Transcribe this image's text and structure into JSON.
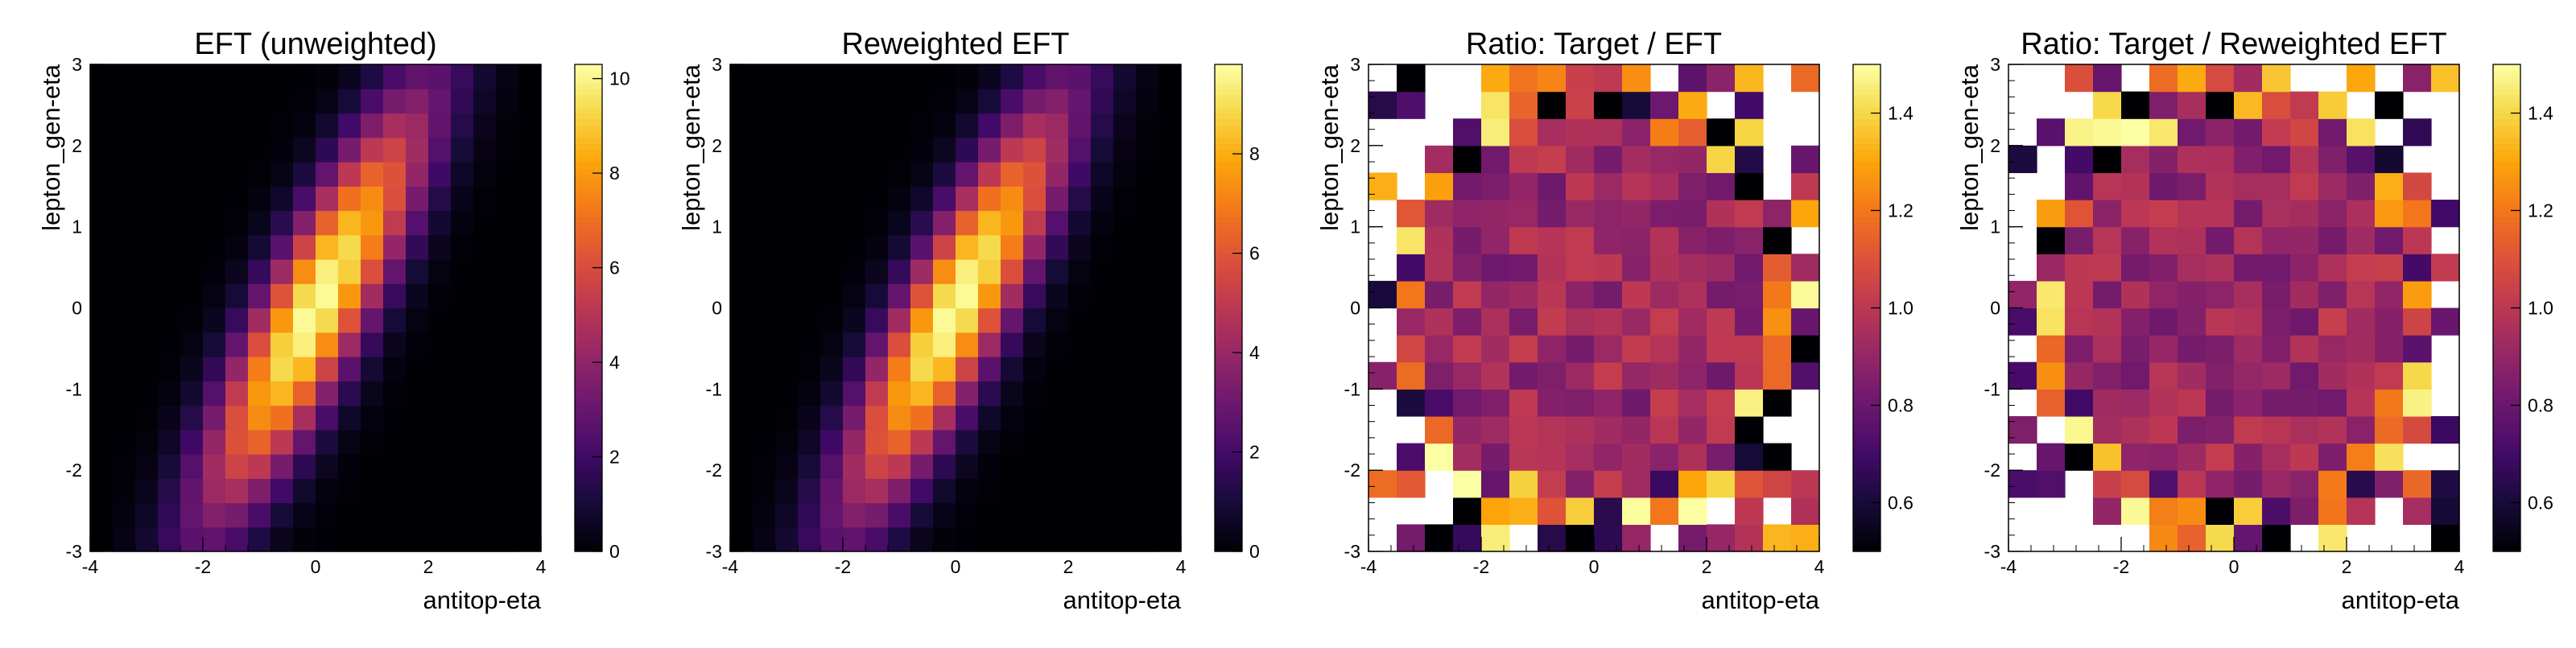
{
  "colormap": "inferno",
  "chart_data": [
    {
      "type": "heatmap",
      "title": "EFT (unweighted)",
      "xlabel": "antitop-eta",
      "ylabel": "lepton_gen-eta",
      "xlim": [
        -4,
        4
      ],
      "ylim": [
        -3,
        3
      ],
      "x_ticks": [
        "-4",
        "-2",
        "0",
        "2",
        "4"
      ],
      "y_ticks": [
        "-3",
        "-2",
        "-1",
        "0",
        "1",
        "2",
        "3"
      ],
      "colorbar": {
        "min": 0,
        "max": 10.3,
        "ticks": [
          {
            "v": 0,
            "label": "0"
          },
          {
            "v": 2,
            "label": "2"
          },
          {
            "v": 4,
            "label": "4"
          },
          {
            "v": 6,
            "label": "6"
          },
          {
            "v": 8,
            "label": "8"
          },
          {
            "v": 10,
            "label": "10"
          }
        ]
      },
      "bins": {
        "nx": 18,
        "ny": 20,
        "x_range": [
          -3.6,
          3.6
        ],
        "y_range": [
          -3,
          3
        ]
      },
      "pattern": "correlated",
      "peak": 10.3
    },
    {
      "type": "heatmap",
      "title": "Reweighted EFT",
      "xlabel": "antitop-eta",
      "ylabel": "lepton_gen-eta",
      "xlim": [
        -4,
        4
      ],
      "ylim": [
        -3,
        3
      ],
      "x_ticks": [
        "-4",
        "-2",
        "0",
        "2",
        "4"
      ],
      "y_ticks": [
        "-3",
        "-2",
        "-1",
        "0",
        "1",
        "2",
        "3"
      ],
      "colorbar": {
        "min": 0,
        "max": 9.8,
        "ticks": [
          {
            "v": 0,
            "label": "0"
          },
          {
            "v": 2,
            "label": "2"
          },
          {
            "v": 4,
            "label": "4"
          },
          {
            "v": 6,
            "label": "6"
          },
          {
            "v": 8,
            "label": "8"
          }
        ]
      },
      "bins": {
        "nx": 18,
        "ny": 20,
        "x_range": [
          -3.6,
          3.6
        ],
        "y_range": [
          -3,
          3
        ]
      },
      "pattern": "correlated",
      "peak": 9.8
    },
    {
      "type": "heatmap",
      "title": "Ratio: Target / EFT",
      "xlabel": "antitop-eta",
      "ylabel": "lepton_gen-eta",
      "xlim": [
        -4,
        4
      ],
      "ylim": [
        -3,
        3
      ],
      "x_ticks": [
        "-4",
        "-2",
        "0",
        "2",
        "4"
      ],
      "y_ticks": [
        "-3",
        "-2",
        "-1",
        "0",
        "1",
        "2",
        "3"
      ],
      "colorbar": {
        "min": 0.5,
        "max": 1.5,
        "ticks": [
          {
            "v": 0.6,
            "label": "0.6"
          },
          {
            "v": 0.8,
            "label": "0.8"
          },
          {
            "v": 1.0,
            "label": "1.0"
          },
          {
            "v": 1.2,
            "label": "1.2"
          },
          {
            "v": 1.4,
            "label": "1.4"
          }
        ]
      },
      "bins": {
        "nx": 16,
        "ny": 18,
        "x_range": [
          -4,
          4
        ],
        "y_range": [
          -3,
          3
        ]
      },
      "pattern": "ratio",
      "seed": 17
    },
    {
      "type": "heatmap",
      "title": "Ratio: Target / Reweighted EFT",
      "xlabel": "antitop-eta",
      "ylabel": "lepton_gen-eta",
      "xlim": [
        -4,
        4
      ],
      "ylim": [
        -3,
        3
      ],
      "x_ticks": [
        "-4",
        "-2",
        "0",
        "2",
        "4"
      ],
      "y_ticks": [
        "-3",
        "-2",
        "-1",
        "0",
        "1",
        "2",
        "3"
      ],
      "colorbar": {
        "min": 0.5,
        "max": 1.5,
        "ticks": [
          {
            "v": 0.6,
            "label": "0.6"
          },
          {
            "v": 0.8,
            "label": "0.8"
          },
          {
            "v": 1.0,
            "label": "1.0"
          },
          {
            "v": 1.2,
            "label": "1.2"
          },
          {
            "v": 1.4,
            "label": "1.4"
          }
        ]
      },
      "bins": {
        "nx": 16,
        "ny": 18,
        "x_range": [
          -4,
          4
        ],
        "y_range": [
          -3,
          3
        ]
      },
      "pattern": "ratio",
      "seed": 53
    }
  ]
}
